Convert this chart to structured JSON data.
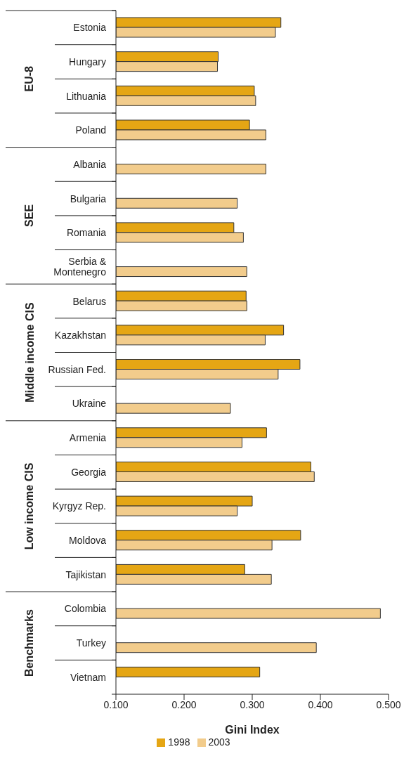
{
  "chart_data": {
    "type": "bar",
    "orientation": "horizontal",
    "xlabel": "Gini Index",
    "categories": [
      "Estonia",
      "Hungary",
      "Lithuania",
      "Poland",
      "Albania",
      "Bulgaria",
      "Romania",
      "Serbia & Montenegro",
      "Belarus",
      "Kazakhstan",
      "Russian Fed.",
      "Ukraine",
      "Armenia",
      "Georgia",
      "Kyrgyz Rep.",
      "Moldova",
      "Tajikistan",
      "Colombia",
      "Turkey",
      "Vietnam"
    ],
    "series": [
      {
        "name": "1998",
        "color": "#e5a614",
        "values": [
          0.342,
          0.25,
          0.303,
          0.296,
          null,
          null,
          0.273,
          null,
          0.291,
          0.346,
          0.37,
          null,
          0.321,
          0.386,
          0.3,
          0.371,
          0.289,
          null,
          null,
          0.311
        ]
      },
      {
        "name": "2003",
        "color": "#f2cc8c",
        "values": [
          0.334,
          0.249,
          0.305,
          0.32,
          0.32,
          0.278,
          0.287,
          0.292,
          0.292,
          0.319,
          0.338,
          0.268,
          0.285,
          0.391,
          0.278,
          0.329,
          0.328,
          0.488,
          0.394,
          null
        ]
      }
    ],
    "xlim": [
      0.1,
      0.5
    ],
    "xticks": [
      {
        "value": 0.1,
        "label": "0.100"
      },
      {
        "value": 0.2,
        "label": "0.200"
      },
      {
        "value": 0.3,
        "label": "0.300"
      },
      {
        "value": 0.4,
        "label": "0.400"
      },
      {
        "value": 0.5,
        "label": "0.500"
      }
    ],
    "annotations": [
      "EU-8",
      "SEE",
      "Middle income CIS",
      "Low income CIS",
      "Benchmarks"
    ],
    "grid": false,
    "legend": "bottom"
  }
}
